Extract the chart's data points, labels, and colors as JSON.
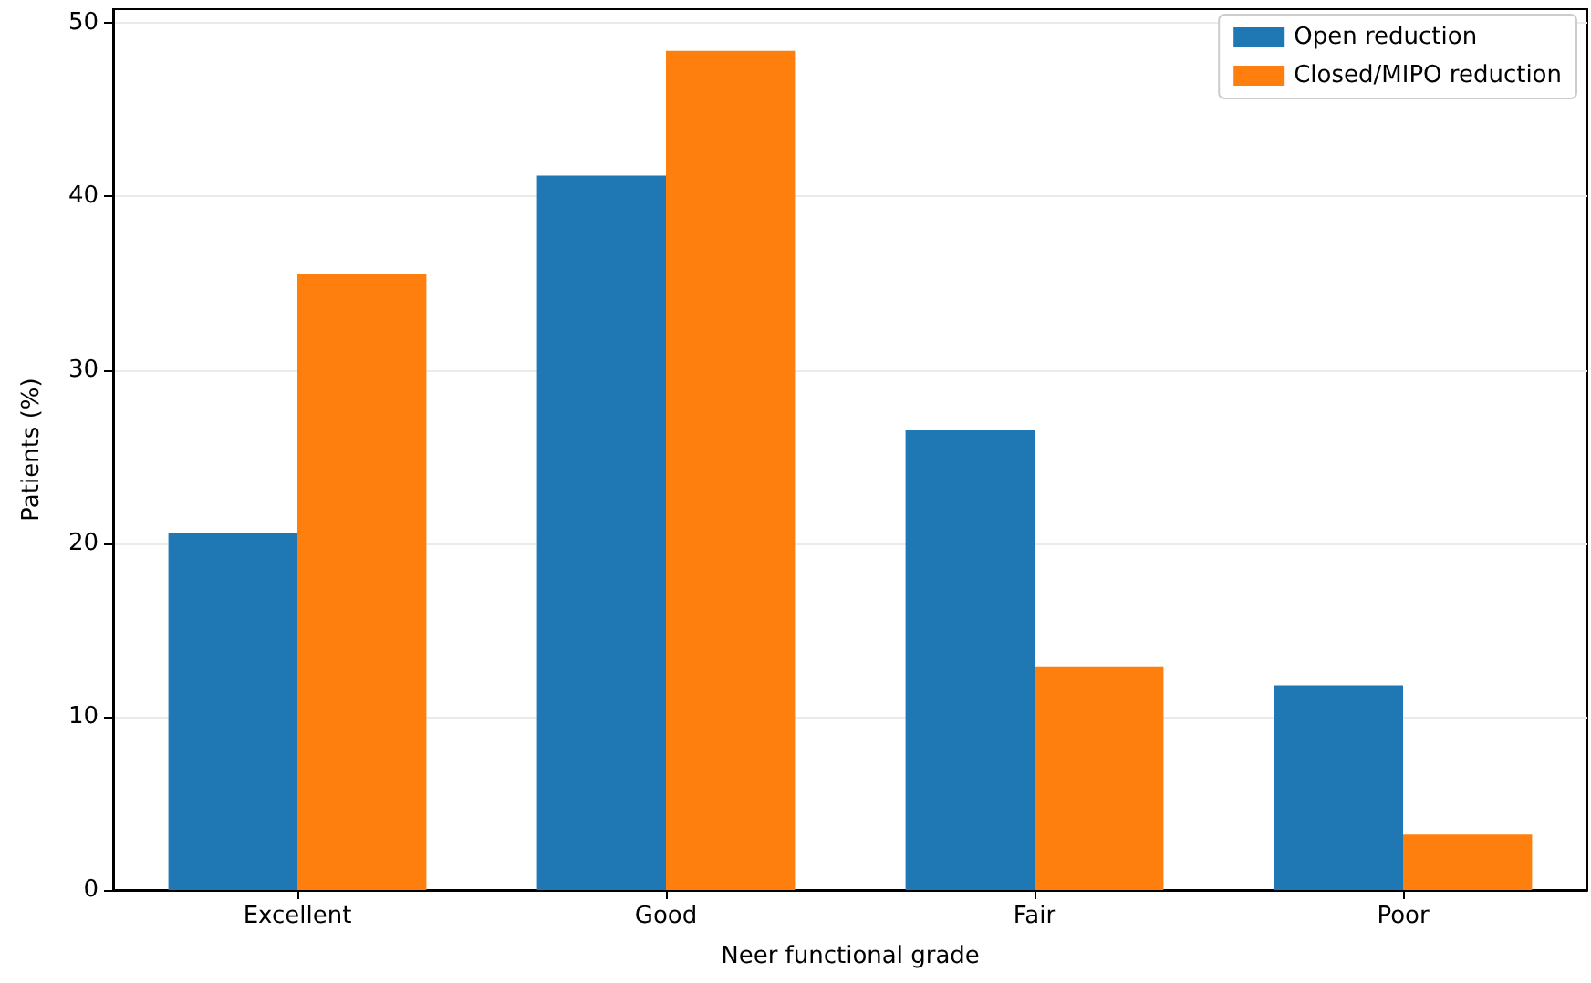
{
  "chart_data": {
    "type": "bar",
    "xlabel": "Neer functional grade",
    "ylabel": "Patients (%)",
    "categories": [
      "Excellent",
      "Good",
      "Fair",
      "Poor"
    ],
    "series": [
      {
        "name": "Open reduction",
        "color": "#1f77b4",
        "values": [
          20.6,
          41.2,
          26.5,
          11.8
        ]
      },
      {
        "name": "Closed/MIPO reduction",
        "color": "#ff7f0e",
        "values": [
          35.5,
          48.4,
          12.9,
          3.2
        ]
      }
    ],
    "ylim": [
      0,
      50.8
    ],
    "yticks": [
      0,
      10,
      20,
      30,
      40,
      50
    ],
    "grid": "y",
    "legend": "top right"
  }
}
